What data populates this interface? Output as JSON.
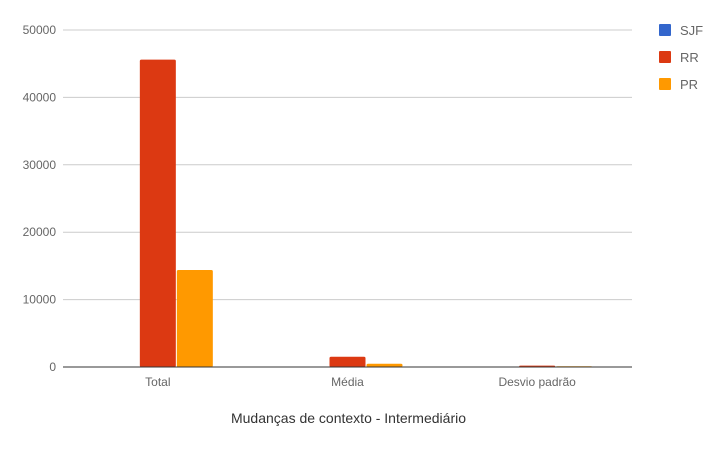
{
  "chart_data": {
    "type": "bar",
    "title": "",
    "xlabel": "Mudanças de contexto - Intermediário",
    "ylabel": "",
    "categories": [
      "Total",
      "Média",
      "Desvio padrão"
    ],
    "series": [
      {
        "name": "SJF",
        "color": "#3366cc",
        "values": [
          0,
          0,
          0
        ]
      },
      {
        "name": "RR",
        "color": "#dc3912",
        "values": [
          45600,
          1520,
          210
        ]
      },
      {
        "name": "PR",
        "color": "#ff9900",
        "values": [
          14400,
          480,
          120
        ]
      }
    ],
    "ylim": [
      0,
      50000
    ],
    "yticks": [
      "0",
      "10000",
      "20000",
      "30000",
      "40000",
      "50000"
    ],
    "grid": true,
    "legend_position": "right"
  }
}
